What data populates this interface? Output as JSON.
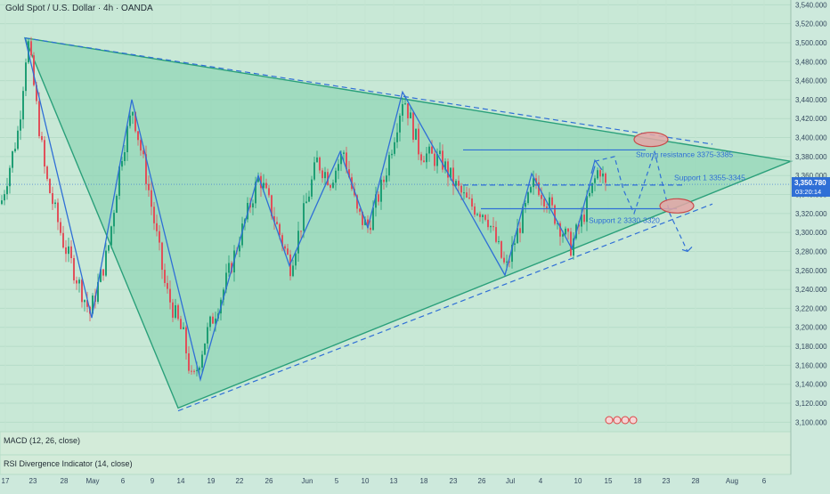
{
  "header": {
    "symbol_title": "Gold Spot / U.S. Dollar · 4h · OANDA"
  },
  "price_badge": {
    "price": "3,350.780",
    "countdown": "03:20:14"
  },
  "indicators": {
    "macd_label": "MACD (12, 26, close)",
    "rsi_label": "RSI Divergence Indicator (14, close)"
  },
  "annotations": {
    "strong_resistance": "Strong resistance 3375-3385",
    "support_1": "Support 1 3355-3345",
    "support_2": "Support 2 3330-3320"
  },
  "colors": {
    "background": "#cde9dc",
    "triangle_fill": "#7fcfad",
    "triangle_edge": "#2aa07a",
    "pattern_blue": "#2f6fd6",
    "candle_up": "#1f9e74",
    "candle_down": "#e0505a",
    "ellipse_fill": "#e4a6a6",
    "ellipse_stroke": "#c84a4a",
    "price_badge": "#2f6fd6"
  },
  "chart_data": {
    "type": "line",
    "ylim": [
      3090,
      3545
    ],
    "y_ticks": [
      "3,540.000",
      "3,520.000",
      "3,500.000",
      "3,480.000",
      "3,460.000",
      "3,440.000",
      "3,420.000",
      "3,400.000",
      "3,380.000",
      "3,360.000",
      "3,340.000",
      "3,320.000",
      "3,300.000",
      "3,280.000",
      "3,260.000",
      "3,240.000",
      "3,220.000",
      "3,200.000",
      "3,180.000",
      "3,160.000",
      "3,140.000",
      "3,120.000",
      "3,100.000"
    ],
    "x_ticks": [
      "17",
      "23",
      "28",
      "May",
      "6",
      "9",
      "14",
      "19",
      "22",
      "26",
      "Jun",
      "5",
      "10",
      "13",
      "18",
      "23",
      "26",
      "Jul",
      "4",
      "10",
      "15",
      "18",
      "23",
      "28",
      "Aug",
      "6"
    ],
    "price_path": [
      [
        0,
        3330
      ],
      [
        20,
        3410
      ],
      [
        30,
        3505
      ],
      [
        50,
        3360
      ],
      [
        70,
        3290
      ],
      [
        100,
        3215
      ],
      [
        120,
        3280
      ],
      [
        135,
        3380
      ],
      [
        148,
        3430
      ],
      [
        165,
        3350
      ],
      [
        185,
        3240
      ],
      [
        205,
        3190
      ],
      [
        215,
        3140
      ],
      [
        230,
        3190
      ],
      [
        250,
        3240
      ],
      [
        270,
        3300
      ],
      [
        290,
        3360
      ],
      [
        305,
        3320
      ],
      [
        325,
        3265
      ],
      [
        340,
        3320
      ],
      [
        355,
        3375
      ],
      [
        370,
        3355
      ],
      [
        385,
        3385
      ],
      [
        400,
        3320
      ],
      [
        412,
        3305
      ],
      [
        430,
        3355
      ],
      [
        452,
        3445
      ],
      [
        470,
        3385
      ],
      [
        495,
        3375
      ],
      [
        510,
        3350
      ],
      [
        525,
        3330
      ],
      [
        545,
        3320
      ],
      [
        567,
        3260
      ],
      [
        580,
        3300
      ],
      [
        600,
        3355
      ],
      [
        615,
        3330
      ],
      [
        640,
        3285
      ],
      [
        655,
        3320
      ],
      [
        672,
        3370
      ],
      [
        680,
        3345
      ]
    ],
    "pattern_zigzag": [
      [
        28,
        3505
      ],
      [
        103,
        3210
      ],
      [
        148,
        3440
      ],
      [
        225,
        3145
      ],
      [
        290,
        3360
      ],
      [
        325,
        3265
      ],
      [
        382,
        3385
      ],
      [
        413,
        3305
      ],
      [
        452,
        3448
      ],
      [
        567,
        3255
      ],
      [
        597,
        3362
      ],
      [
        642,
        3283
      ],
      [
        668,
        3370
      ]
    ],
    "triangle_outline": [
      [
        28,
        3505
      ],
      [
        200,
        3115
      ],
      [
        888,
        3375
      ]
    ],
    "projection": [
      [
        668,
        3375
      ],
      [
        690,
        3380
      ],
      [
        700,
        3345
      ],
      [
        712,
        3320
      ],
      [
        735,
        3385
      ],
      [
        752,
        3320
      ],
      [
        772,
        3280
      ]
    ],
    "levels": {
      "strong_resistance": [
        3375,
        3385
      ],
      "support_1": [
        3345,
        3355
      ],
      "support_2": [
        3320,
        3330
      ]
    }
  }
}
